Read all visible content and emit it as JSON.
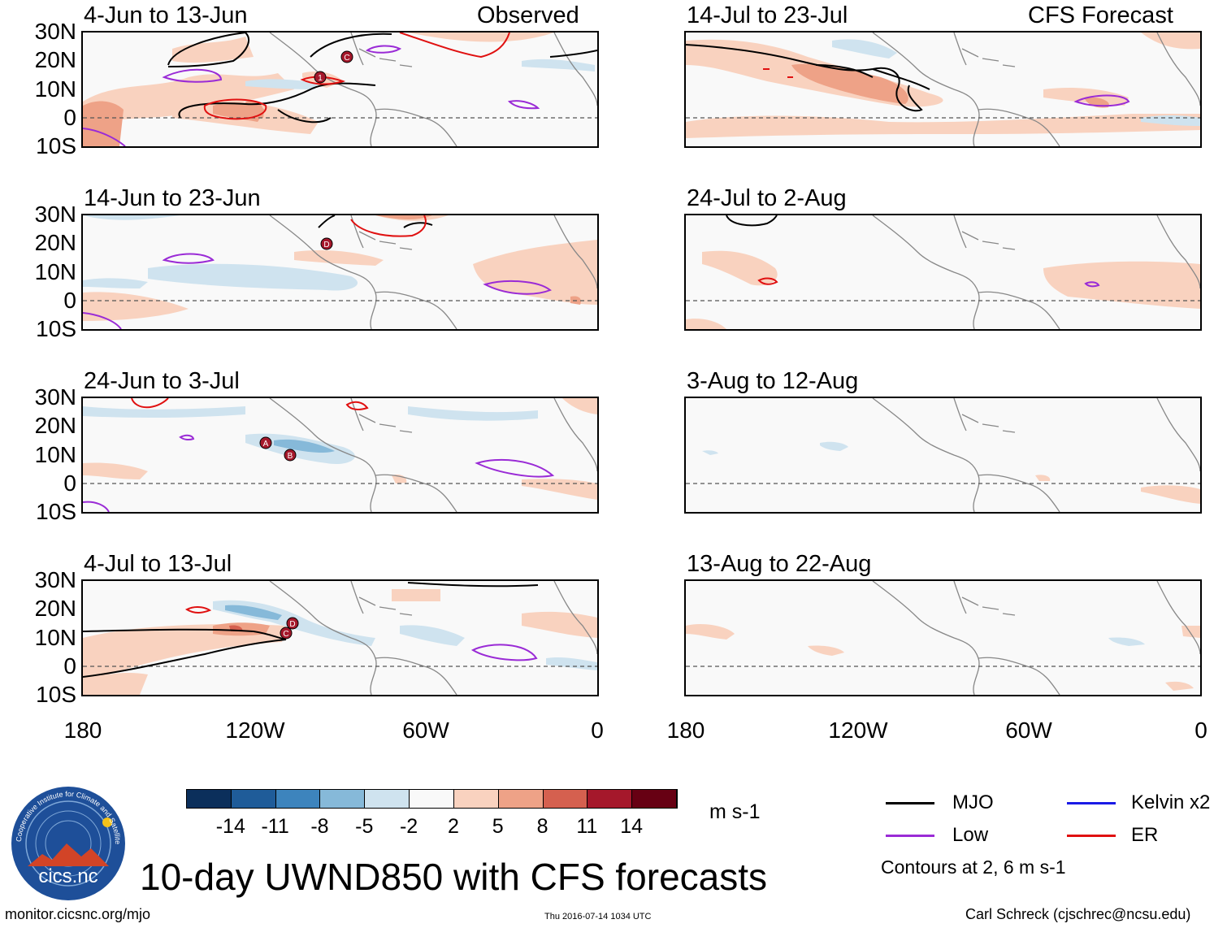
{
  "panels": [
    {
      "id": "obs1",
      "title": "4-Jun to 13-Jun",
      "tag": "Observed"
    },
    {
      "id": "obs2",
      "title": "14-Jun to 23-Jun"
    },
    {
      "id": "obs3",
      "title": "24-Jun to 3-Jul"
    },
    {
      "id": "obs4",
      "title": "4-Jul to 13-Jul"
    },
    {
      "id": "fc1",
      "title": "14-Jul to 23-Jul",
      "tag": "CFS Forecast"
    },
    {
      "id": "fc2",
      "title": "24-Jul to 2-Aug"
    },
    {
      "id": "fc3",
      "title": "3-Aug to 12-Aug"
    },
    {
      "id": "fc4",
      "title": "13-Aug to 22-Aug"
    }
  ],
  "lat_labels": [
    "30N",
    "20N",
    "10N",
    "0",
    "10S"
  ],
  "lon_labels": [
    "180",
    "120W",
    "60W",
    "0"
  ],
  "storm_markers": {
    "obs1": [
      "1",
      "C"
    ],
    "obs2": [
      "D"
    ],
    "obs3": [
      "A",
      "B"
    ],
    "obs4": [
      "C",
      "D"
    ]
  },
  "colorbar": {
    "ticks": [
      "-14",
      "-11",
      "-8",
      "-5",
      "-2",
      "2",
      "5",
      "8",
      "11",
      "14"
    ],
    "colors": [
      "#0b2f5b",
      "#1f5c99",
      "#3d84bd",
      "#86b9d9",
      "#cfe3ef",
      "#f9f9f9",
      "#f9d2bf",
      "#eea287",
      "#d5604f",
      "#a5182b",
      "#670013"
    ],
    "units": "m s-1"
  },
  "legend": {
    "items": [
      {
        "label": "MJO",
        "color": "#000000"
      },
      {
        "label": "Kelvin x2",
        "color": "#1a1ae6"
      },
      {
        "label": "Low",
        "color": "#9a2bd6"
      },
      {
        "label": "ER",
        "color": "#e01010"
      }
    ],
    "note": "Contours at 2, 6 m s-1"
  },
  "main_title": "10-day UWND850 with CFS forecasts",
  "logo_text": "cics.nc",
  "logo_ring_text": "Cooperative Institute for Climate and Satellites",
  "footer": {
    "url": "monitor.cicsnc.org/mjo",
    "timestamp": "Thu 2016-07-14 1034 UTC",
    "credit": "Carl Schreck (cjschrec@ncsu.edu)"
  }
}
